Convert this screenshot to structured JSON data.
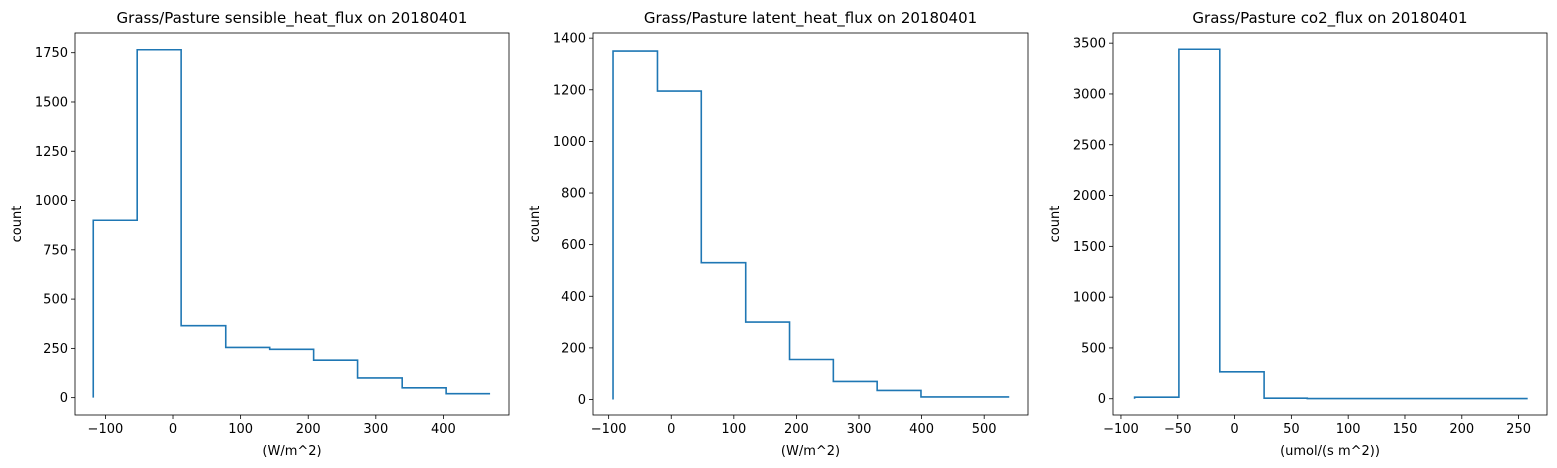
{
  "chart_data": [
    {
      "type": "histogram-step",
      "title": "Grass/Pasture sensible_heat_flux on 20180401",
      "xlabel": "(W/m^2)",
      "ylabel": "count",
      "xlim": [
        -145,
        497
      ],
      "ylim": [
        -88,
        1850
      ],
      "xticks": [
        -100,
        0,
        100,
        200,
        300,
        400
      ],
      "yticks": [
        0,
        250,
        500,
        750,
        1000,
        1250,
        1500,
        1750
      ],
      "ytick_labels": [
        "0",
        "250",
        "500",
        "750",
        "1000",
        "1250",
        "1500",
        "1750"
      ],
      "bin_edges": [
        -118,
        -53,
        12,
        78,
        143,
        208,
        273,
        339,
        404,
        469
      ],
      "counts": [
        900,
        1765,
        365,
        255,
        245,
        190,
        100,
        50,
        20
      ],
      "color": "#1f77b4"
    },
    {
      "type": "histogram-step",
      "title": "Grass/Pasture latent_heat_flux on 20180401",
      "xlabel": "(W/m^2)",
      "ylabel": "count",
      "xlim": [
        -125,
        570
      ],
      "ylim": [
        -60,
        1420
      ],
      "xticks": [
        -100,
        0,
        100,
        200,
        300,
        400,
        500
      ],
      "yticks": [
        0,
        200,
        400,
        600,
        800,
        1000,
        1200,
        1400
      ],
      "ytick_labels": [
        "0",
        "200",
        "400",
        "600",
        "800",
        "1000",
        "1200",
        "1400"
      ],
      "bin_edges": [
        -93,
        -22,
        48,
        119,
        189,
        259,
        329,
        399,
        470,
        540
      ],
      "counts": [
        1350,
        1195,
        530,
        300,
        155,
        70,
        35,
        10,
        10
      ],
      "color": "#1f77b4"
    },
    {
      "type": "histogram-step",
      "title": "Grass/Pasture co2_flux on 20180401",
      "xlabel": "(umol/(s m^2))",
      "ylabel": "count",
      "xlim": [
        -107,
        275
      ],
      "ylim": [
        -160,
        3600
      ],
      "xticks": [
        -100,
        -50,
        0,
        50,
        100,
        150,
        200,
        250
      ],
      "yticks": [
        0,
        500,
        1000,
        1500,
        2000,
        2500,
        3000,
        3500
      ],
      "ytick_labels": [
        "0",
        "500",
        "1000",
        "1500",
        "2000",
        "2500",
        "3000",
        "3500"
      ],
      "bin_edges": [
        -88,
        -49,
        -13,
        26,
        64,
        103,
        142,
        181,
        219,
        258
      ],
      "counts": [
        15,
        3440,
        265,
        5,
        2,
        2,
        2,
        2,
        2
      ],
      "color": "#1f77b4"
    }
  ]
}
